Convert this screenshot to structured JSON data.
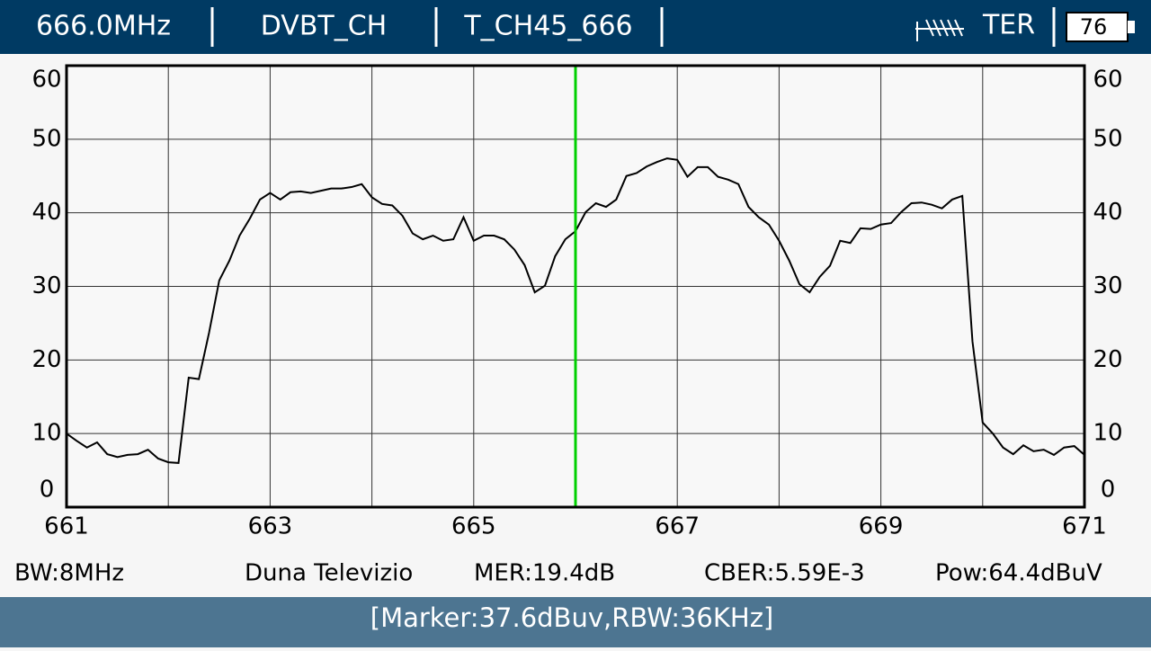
{
  "header": {
    "frequency": "666.0MHz",
    "mode": "DVBT_CH",
    "channel": "T_CH45_666",
    "band": "TER",
    "battery": "76"
  },
  "chart_data": {
    "type": "line",
    "x": [
      661.0,
      661.1,
      661.2,
      661.3,
      661.4,
      661.5,
      661.6,
      661.7,
      661.8,
      661.9,
      662.0,
      662.1,
      662.2,
      662.3,
      662.4,
      662.5,
      662.6,
      662.7,
      662.8,
      662.9,
      663.0,
      663.1,
      663.2,
      663.3,
      663.4,
      663.5,
      663.6,
      663.7,
      663.8,
      663.9,
      664.0,
      664.1,
      664.2,
      664.3,
      664.4,
      664.5,
      664.6,
      664.7,
      664.8,
      664.9,
      665.0,
      665.1,
      665.2,
      665.3,
      665.4,
      665.5,
      665.6,
      665.7,
      665.8,
      665.9,
      666.0,
      666.1,
      666.2,
      666.3,
      666.4,
      666.5,
      666.6,
      666.7,
      666.8,
      666.9,
      667.0,
      667.1,
      667.2,
      667.3,
      667.4,
      667.5,
      667.6,
      667.7,
      667.8,
      667.9,
      668.0,
      668.1,
      668.2,
      668.3,
      668.4,
      668.5,
      668.6,
      668.7,
      668.8,
      668.9,
      669.0,
      669.1,
      669.2,
      669.3,
      669.4,
      669.5,
      669.6,
      669.7,
      669.8,
      669.9,
      670.0,
      670.1,
      670.2,
      670.3,
      670.4,
      670.5,
      670.6,
      670.7,
      670.8,
      670.9,
      671.0
    ],
    "series": [
      {
        "color": "#000000",
        "values": [
          10.0,
          9.0,
          8.1,
          8.8,
          7.2,
          6.8,
          7.1,
          7.2,
          7.8,
          6.6,
          6.1,
          6.0,
          17.6,
          17.4,
          23.7,
          30.8,
          33.5,
          36.9,
          39.2,
          41.8,
          42.7,
          41.8,
          42.8,
          42.9,
          42.7,
          43.0,
          43.3,
          43.3,
          43.5,
          43.9,
          42.1,
          41.2,
          41.0,
          39.6,
          37.2,
          36.4,
          36.9,
          36.2,
          36.4,
          39.4,
          36.2,
          36.9,
          36.9,
          36.4,
          35.0,
          32.9,
          29.2,
          30.1,
          34.1,
          36.4,
          37.5,
          40.1,
          41.3,
          40.8,
          41.8,
          45.0,
          45.4,
          46.3,
          46.9,
          47.4,
          47.2,
          44.9,
          46.2,
          46.2,
          44.9,
          44.5,
          43.9,
          40.8,
          39.4,
          38.4,
          36.2,
          33.5,
          30.3,
          29.2,
          31.3,
          32.8,
          36.2,
          35.9,
          37.9,
          37.8,
          38.4,
          38.6,
          40.1,
          41.3,
          41.4,
          41.1,
          40.6,
          41.8,
          42.3,
          22.5,
          11.5,
          10.0,
          8.1,
          7.2,
          8.4,
          7.6,
          7.8,
          7.1,
          8.1,
          8.3,
          7.1
        ]
      }
    ],
    "xlim": [
      661,
      671
    ],
    "xticks": [
      661,
      663,
      665,
      667,
      669,
      671
    ],
    "xminorticks": [
      662,
      664,
      666,
      668,
      670
    ],
    "ylim": [
      0,
      60
    ],
    "yticks": [
      0,
      10,
      20,
      30,
      40,
      50,
      60
    ],
    "grid": true,
    "marker": {
      "x": 666.0,
      "color": "#00d000"
    }
  },
  "info": {
    "bw": "BW:8MHz",
    "service": "Duna Televizio",
    "mer": "MER:19.4dB",
    "cber": "CBER:5.59E-3",
    "pow": "Pow:64.4dBuV"
  },
  "footer": {
    "status": "[Marker:37.6dBuv,RBW:36KHz]"
  }
}
